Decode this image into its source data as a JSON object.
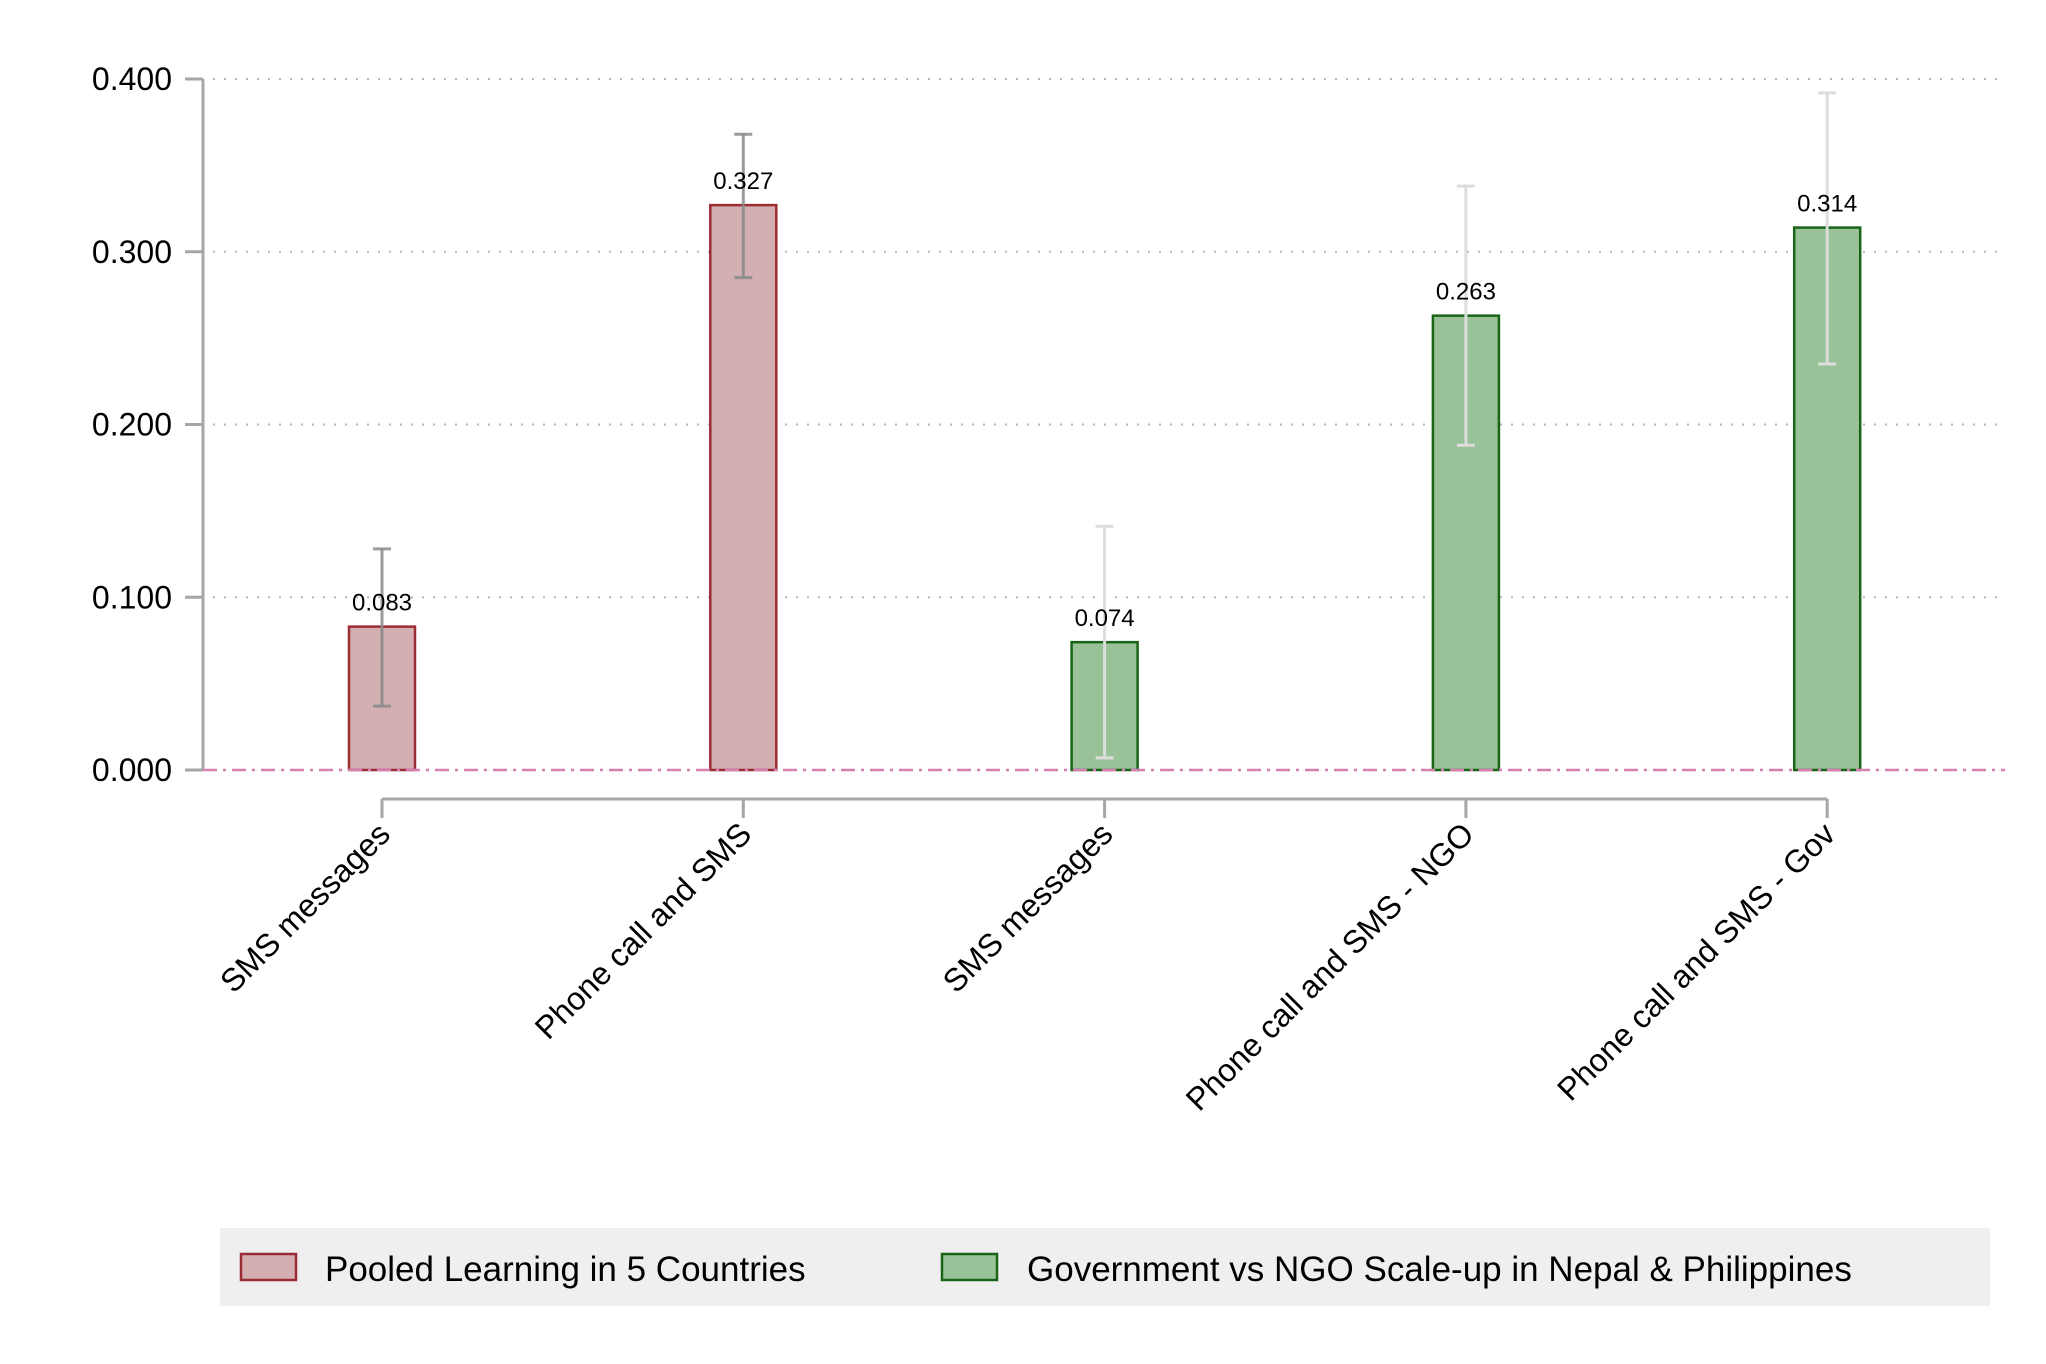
{
  "chart_data": {
    "type": "bar",
    "title": "",
    "xlabel": "",
    "ylabel": "",
    "ylim": [
      0,
      0.4
    ],
    "yticks": [
      "0.000",
      "0.100",
      "0.200",
      "0.300",
      "0.400"
    ],
    "ytick_values": [
      0,
      0.1,
      0.2,
      0.3,
      0.4
    ],
    "grid": "horizontal dotted",
    "reference_line": {
      "y": 0,
      "style": "dash-dot",
      "color": "#d67fb0"
    },
    "categories": [
      "SMS messages",
      "Phone call and SMS",
      "SMS messages",
      "Phone call and SMS - NGO",
      "Phone call and SMS - Gov"
    ],
    "values": [
      0.083,
      0.327,
      0.074,
      0.263,
      0.314
    ],
    "value_labels": [
      "0.083",
      "0.327",
      "0.074",
      "0.263",
      "0.314"
    ],
    "ci_low": [
      0.037,
      0.285,
      0.007,
      0.188,
      0.235
    ],
    "ci_high": [
      0.128,
      0.368,
      0.141,
      0.338,
      0.392
    ],
    "series_index": [
      0,
      0,
      1,
      1,
      1
    ],
    "series": [
      {
        "name": "Pooled Learning in 5 Countries",
        "fill": "#d3afb1",
        "stroke": "#9b2c33",
        "errorbar_color": "#8a8a8a"
      },
      {
        "name": "Government vs NGO Scale-up in Nepal & Philippines",
        "fill": "#99c298",
        "stroke": "#1a6418",
        "errorbar_color": "#dddddd"
      }
    ],
    "legend_position": "bottom"
  }
}
